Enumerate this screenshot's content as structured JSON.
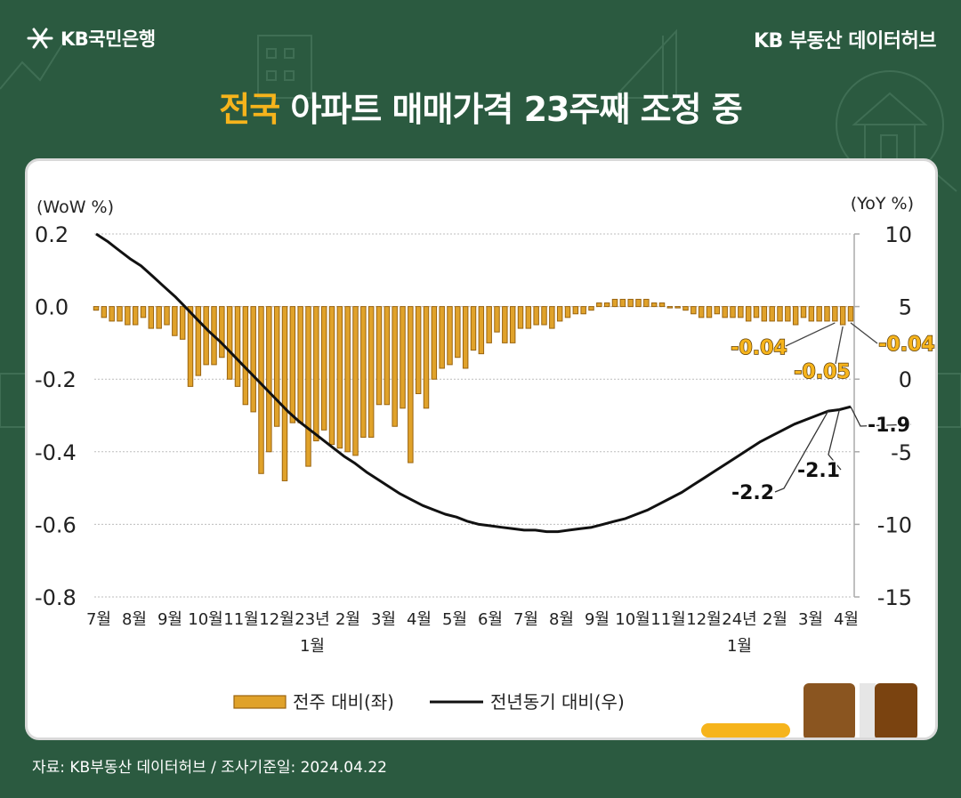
{
  "header": {
    "logo_label": "KB국민은행",
    "brand_right": "KB 부동산  데이터허브",
    "title_highlight": "전국",
    "title_rest": " 아파트 매매가격 23주째 조정 중"
  },
  "footer": {
    "source_note": "자료: KB부동산 데이터허브 / 조사기준일: 2024.04.22"
  },
  "colors": {
    "background": "#2b5a40",
    "bar_fill": "#e0a22a",
    "bar_stroke": "#9a6410",
    "line": "#111111",
    "highlight": "#f6b41c"
  },
  "chart_data": {
    "type": "bar+line",
    "left_axis_unit": "(WoW %)",
    "right_axis_unit": "(YoY %)",
    "left_ylim": [
      -0.8,
      0.2
    ],
    "left_ticks": [
      "0.2",
      "0.0",
      "-0.2",
      "-0.4",
      "-0.6",
      "-0.8"
    ],
    "right_ylim": [
      -15,
      10
    ],
    "right_ticks": [
      "10",
      "5",
      "0",
      "-5",
      "-10",
      "-15"
    ],
    "x_tick_labels": [
      "7월",
      "8월",
      "9월",
      "10월",
      "11월",
      "12월",
      "23년",
      "2월",
      "3월",
      "4월",
      "5월",
      "6월",
      "7월",
      "8월",
      "9월",
      "10월",
      "11월",
      "12월",
      "24년",
      "2월",
      "3월",
      "4월"
    ],
    "x_sub_labels": [
      {
        "under": 6,
        "text": "1월"
      },
      {
        "under": 18,
        "text": "1월"
      }
    ],
    "series": [
      {
        "name": "전주 대비(좌)",
        "type": "bar",
        "axis": "left",
        "values": [
          -0.01,
          -0.03,
          -0.04,
          -0.04,
          -0.05,
          -0.05,
          -0.03,
          -0.06,
          -0.06,
          -0.05,
          -0.08,
          -0.09,
          -0.22,
          -0.19,
          -0.16,
          -0.16,
          -0.14,
          -0.2,
          -0.22,
          -0.27,
          -0.29,
          -0.46,
          -0.4,
          -0.33,
          -0.48,
          -0.32,
          -0.32,
          -0.44,
          -0.37,
          -0.34,
          -0.38,
          -0.39,
          -0.4,
          -0.41,
          -0.36,
          -0.36,
          -0.27,
          -0.27,
          -0.33,
          -0.28,
          -0.43,
          -0.24,
          -0.28,
          -0.2,
          -0.17,
          -0.16,
          -0.14,
          -0.17,
          -0.12,
          -0.13,
          -0.1,
          -0.07,
          -0.1,
          -0.1,
          -0.06,
          -0.06,
          -0.05,
          -0.05,
          -0.06,
          -0.04,
          -0.03,
          -0.02,
          -0.02,
          -0.01,
          0.01,
          0.01,
          0.02,
          0.02,
          0.02,
          0.02,
          0.02,
          0.01,
          0.01,
          0.0,
          0.0,
          -0.01,
          -0.02,
          -0.03,
          -0.03,
          -0.02,
          -0.03,
          -0.03,
          -0.03,
          -0.04,
          -0.03,
          -0.04,
          -0.04,
          -0.04,
          -0.04,
          -0.05,
          -0.03,
          -0.04,
          -0.04,
          -0.04,
          -0.04,
          -0.05,
          -0.04
        ]
      },
      {
        "name": "전년동기 대비(우)",
        "type": "line",
        "axis": "right",
        "values": [
          10.0,
          9.5,
          8.9,
          8.3,
          7.8,
          7.1,
          6.4,
          5.7,
          4.9,
          4.1,
          3.3,
          2.6,
          1.8,
          1.0,
          0.2,
          -0.6,
          -1.4,
          -2.2,
          -2.9,
          -3.5,
          -4.1,
          -4.7,
          -5.3,
          -5.8,
          -6.4,
          -6.9,
          -7.4,
          -7.9,
          -8.3,
          -8.7,
          -9.0,
          -9.3,
          -9.5,
          -9.8,
          -10.0,
          -10.1,
          -10.2,
          -10.3,
          -10.4,
          -10.4,
          -10.5,
          -10.5,
          -10.4,
          -10.3,
          -10.2,
          -10.0,
          -9.8,
          -9.6,
          -9.3,
          -9.0,
          -8.6,
          -8.2,
          -7.8,
          -7.3,
          -6.8,
          -6.3,
          -5.8,
          -5.3,
          -4.8,
          -4.3,
          -3.9,
          -3.5,
          -3.1,
          -2.8,
          -2.5,
          -2.2,
          -2.1,
          -1.9
        ],
        "start_bar_index": 0,
        "end_bar_index": 96
      }
    ],
    "annotations": [
      {
        "series": 0,
        "text": "-0.04",
        "bar_index": 94
      },
      {
        "series": 0,
        "text": "-0.05",
        "bar_index": 95
      },
      {
        "series": 0,
        "text": "-0.04",
        "bar_index": 96
      },
      {
        "series": 1,
        "text": "-2.2"
      },
      {
        "series": 1,
        "text": "-2.1"
      },
      {
        "series": 1,
        "text": "-1.9"
      }
    ],
    "legend_position": "bottom-center",
    "grid": true
  }
}
